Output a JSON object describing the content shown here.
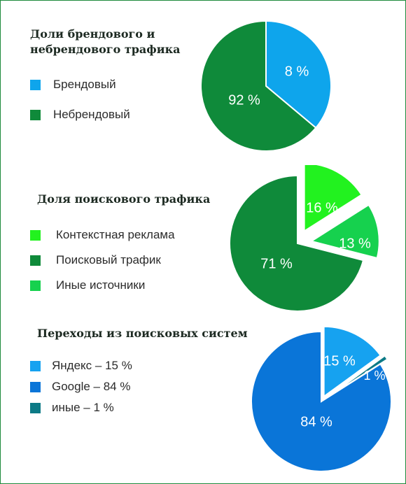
{
  "chart_data": [
    {
      "type": "pie",
      "title": "Доли брендового и небрендового трафика",
      "labels": [
        "Брендовый",
        "Небрендовый"
      ],
      "values": [
        8,
        92
      ],
      "data_labels": [
        "8 %",
        "92 %"
      ],
      "colors": [
        "#0ea5ec",
        "#0f8a3a"
      ],
      "legend": "left"
    },
    {
      "type": "pie",
      "title": "Доля поискового трафика",
      "labels": [
        "Контекстная реклама",
        "Поисковый трафик",
        "Иные источники"
      ],
      "values": [
        16,
        71,
        13
      ],
      "data_labels": [
        "16 %",
        "71 %",
        "13 %"
      ],
      "colors": [
        "#22f21f",
        "#0f8a3a",
        "#16d14e"
      ],
      "legend": "left"
    },
    {
      "type": "pie",
      "title": "Переходы из поисковых систем",
      "labels": [
        "Яндекс – 15 %",
        "Google – 84 %",
        "иные – 1 %"
      ],
      "values": [
        15,
        84,
        1
      ],
      "data_labels": [
        "15 %",
        "84 %",
        "1 %"
      ],
      "colors": [
        "#16a2f0",
        "#0a75d8",
        "#0c7a86"
      ],
      "legend": "left"
    }
  ]
}
